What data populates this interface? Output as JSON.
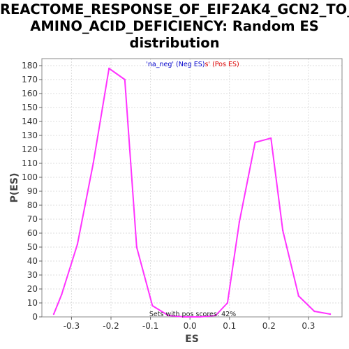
{
  "chart_data": {
    "type": "line",
    "title_lines": [
      "REACTOME_RESPONSE_OF_EIF2AK4_GCN2_TO_",
      "AMINO_ACID_DEFICIENCY: Random ES",
      "distribution"
    ],
    "xlabel": "ES",
    "ylabel": "P(ES)",
    "xlim": [
      -0.375,
      0.385
    ],
    "ylim": [
      0,
      185
    ],
    "x_ticks": [
      -0.3,
      -0.2,
      -0.1,
      0.0,
      0.1,
      0.2,
      0.3
    ],
    "x_tick_labels": [
      "-0.3",
      "-0.2",
      "-0.1",
      "0.0",
      "0.1",
      "0.2",
      "0.3"
    ],
    "y_ticks": [
      0,
      10,
      20,
      30,
      40,
      50,
      60,
      70,
      80,
      90,
      100,
      110,
      120,
      130,
      140,
      150,
      160,
      170,
      180
    ],
    "y_tick_labels": [
      "0",
      "10",
      "20",
      "30",
      "40",
      "50",
      "60",
      "70",
      "80",
      "90",
      "100",
      "110",
      "120",
      "130",
      "140",
      "150",
      "160",
      "170",
      "180"
    ],
    "grid": true,
    "legend": {
      "placement": "top-center",
      "parts": [
        {
          "text": "'na_neg' (Neg ES)",
          "color": "#0000cc"
        },
        {
          "text": "s' (Pos ES)",
          "color": "#dd0000"
        }
      ]
    },
    "annotation": "Sets with pos scores: 42%",
    "series": [
      {
        "color": "#ff33ff",
        "x": [
          -0.345,
          -0.325,
          -0.285,
          -0.245,
          -0.205,
          -0.165,
          -0.135,
          -0.095,
          -0.055,
          -0.015,
          0.025,
          0.065,
          0.095,
          0.125,
          0.165,
          0.205,
          0.235,
          0.275,
          0.315,
          0.355
        ],
        "y": [
          2,
          16,
          52,
          110,
          178,
          170,
          50,
          8,
          1,
          0,
          0,
          1,
          10,
          68,
          125,
          128,
          62,
          15,
          4,
          2
        ]
      }
    ]
  }
}
